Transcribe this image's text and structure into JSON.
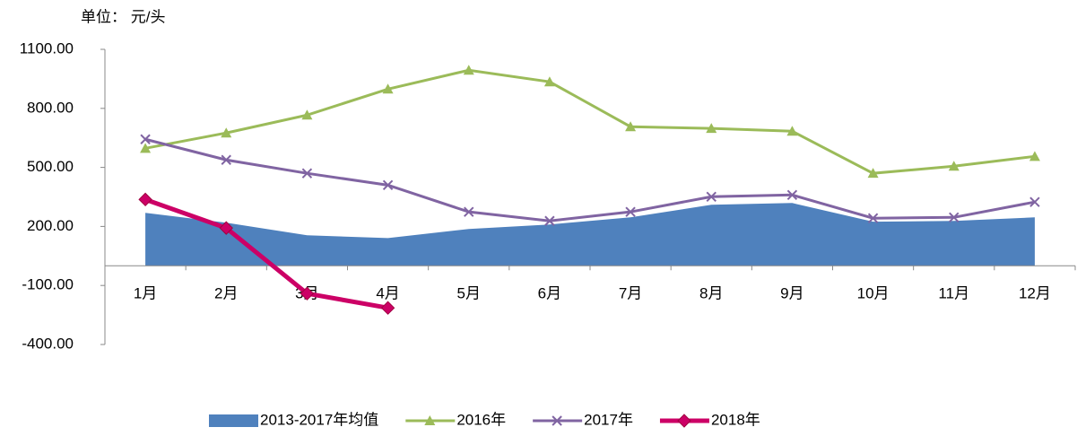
{
  "chart_data": {
    "type": "line",
    "unit_label": "单位： 元/头",
    "categories": [
      "1月",
      "2月",
      "3月",
      "4月",
      "5月",
      "6月",
      "7月",
      "8月",
      "9月",
      "10月",
      "11月",
      "12月"
    ],
    "ylim": [
      -400,
      1100
    ],
    "yticks": [
      {
        "value": -400,
        "label": "-400.00"
      },
      {
        "value": -100,
        "label": "-100.00"
      },
      {
        "value": 200,
        "label": "200.00"
      },
      {
        "value": 500,
        "label": "500.00"
      },
      {
        "value": 800,
        "label": "800.00"
      },
      {
        "value": 1100,
        "label": "1100.00"
      }
    ],
    "grid": false,
    "legend": "bottom",
    "series": [
      {
        "name": "2013-2017年均值",
        "kind": "area",
        "color": "#4f81bd",
        "values": [
          269,
          219,
          155,
          141,
          187,
          210,
          246,
          310,
          319,
          224,
          228,
          246
        ]
      },
      {
        "name": "2016年",
        "kind": "line",
        "marker": "triangle",
        "color": "#9bbb59",
        "values": [
          597,
          675,
          766,
          898,
          994,
          935,
          707,
          698,
          684,
          470,
          506,
          556
        ]
      },
      {
        "name": "2017年",
        "kind": "line",
        "marker": "x",
        "color": "#8064a2",
        "values": [
          643,
          538,
          470,
          410,
          274,
          228,
          274,
          351,
          360,
          242,
          246,
          324
        ]
      },
      {
        "name": "2018年",
        "kind": "line",
        "marker": "diamond",
        "color": "#cc0066",
        "values": [
          337,
          192,
          -141,
          -214,
          null,
          null,
          null,
          null,
          null,
          null,
          null,
          null
        ]
      }
    ]
  }
}
